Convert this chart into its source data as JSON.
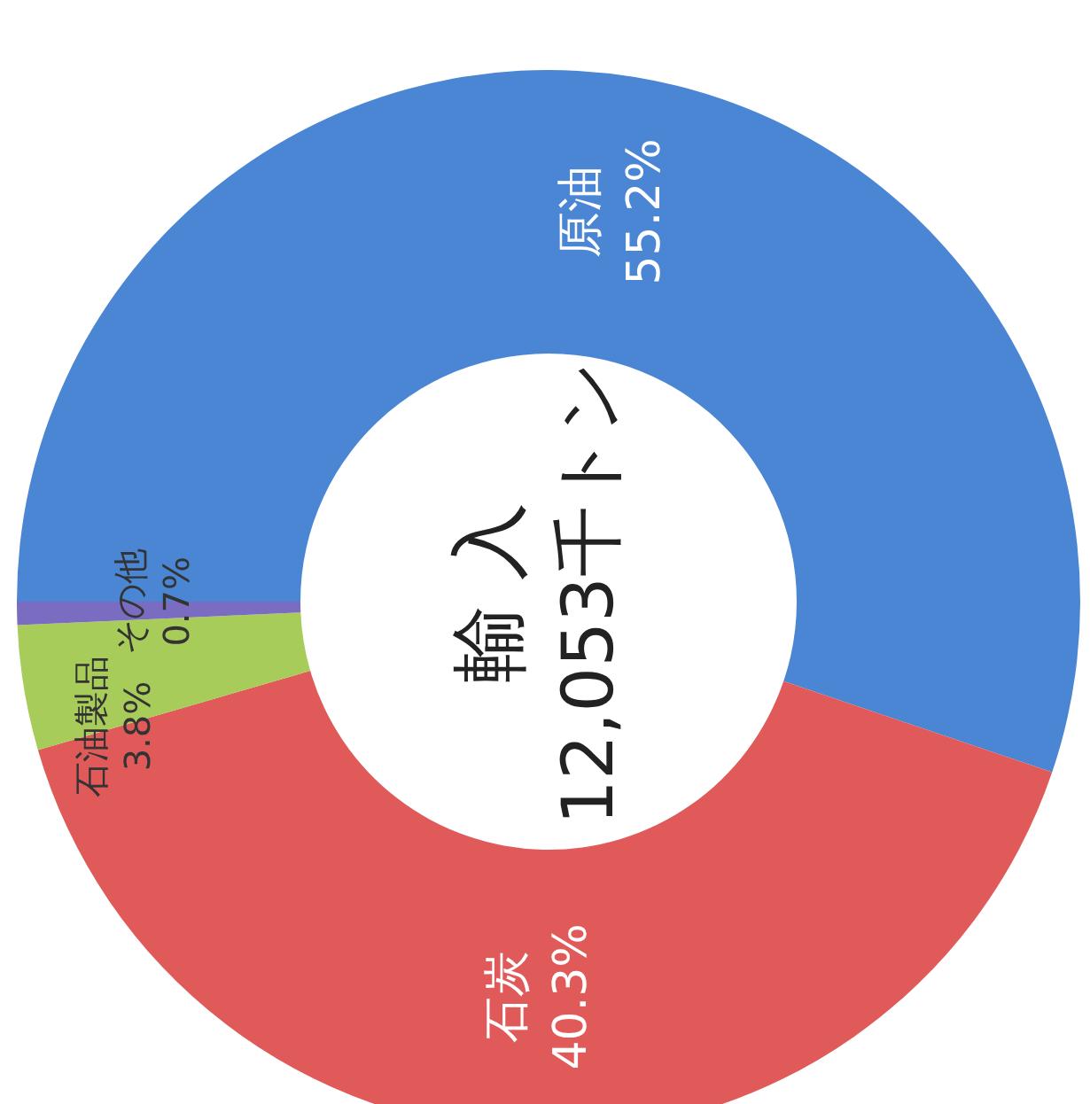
{
  "chart_data": {
    "type": "donut",
    "title": "輸 入",
    "subtitle": "12,053千トン",
    "categories": [
      "原油",
      "石炭",
      "石油製品",
      "その他"
    ],
    "values": [
      55.2,
      40.3,
      3.8,
      0.7
    ],
    "colors": [
      "#4a86d4",
      "#e05a5a",
      "#a8cc5a",
      "#7a6cc0"
    ],
    "value_labels": [
      "55.2%",
      "40.3%",
      "3.8%",
      "0.7%"
    ],
    "legend": false
  }
}
